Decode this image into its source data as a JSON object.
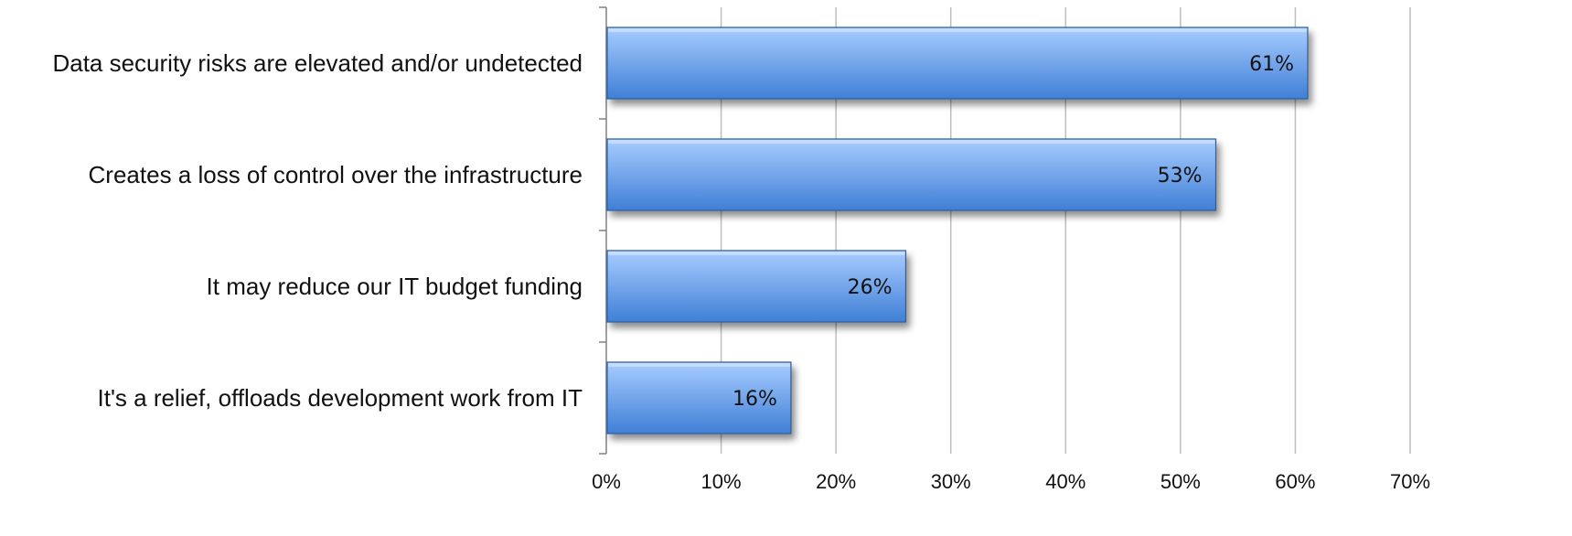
{
  "chart_data": {
    "type": "bar",
    "orientation": "horizontal",
    "categories": [
      "Data security risks are elevated and/or undetected",
      "Creates a loss of control over the infrastructure",
      "It may reduce our IT budget funding",
      "It's a relief, offloads development work from IT"
    ],
    "values": [
      61,
      53,
      26,
      16
    ],
    "data_labels": [
      "61%",
      "53%",
      "26%",
      "16%"
    ],
    "title": "",
    "xlabel": "",
    "ylabel": "",
    "xlim": [
      0,
      70
    ],
    "x_ticks": [
      0,
      10,
      20,
      30,
      40,
      50,
      60,
      70
    ],
    "x_tick_labels": [
      "0%",
      "10%",
      "20%",
      "30%",
      "40%",
      "50%",
      "60%",
      "70%"
    ],
    "grid": "vertical",
    "legend": "none",
    "colors": {
      "bar_top": "#a8ccff",
      "bar_bottom": "#3f7fd6",
      "bar_edge": "#2f5d9c",
      "grid": "#bdbdbd",
      "axis": "#808080"
    }
  }
}
